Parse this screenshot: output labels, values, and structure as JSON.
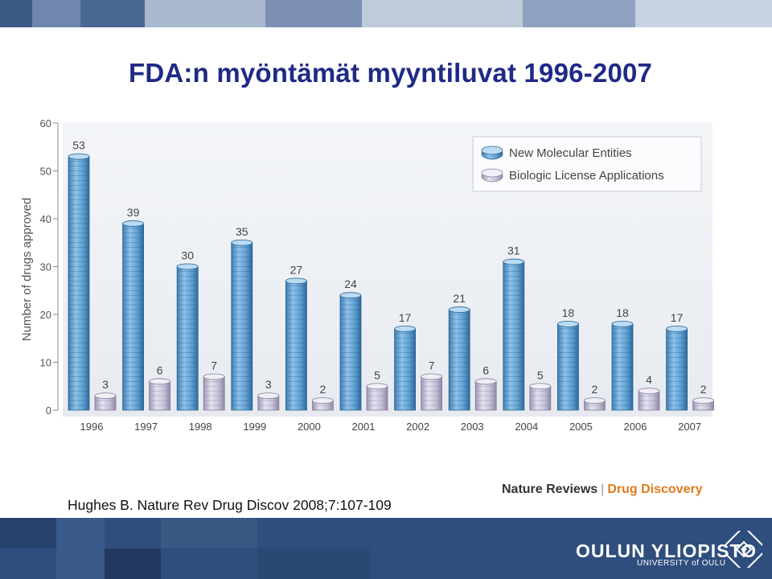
{
  "slide": {
    "title": "FDA:n myöntämät myyntiluvat 1996-2007",
    "citation": "Hughes B. Nature Rev Drug Discov 2008;7:107-109",
    "journal_name": "Nature Reviews",
    "journal_section": "Drug Discovery",
    "university_name": "OULUN YLIOPISTO",
    "university_sub": "UNIVERSITY of OULU"
  },
  "chart_data": {
    "type": "bar",
    "title": "",
    "xlabel": "",
    "ylabel": "Number of drugs approved",
    "ylim": [
      0,
      60
    ],
    "yticks": [
      0,
      10,
      20,
      30,
      40,
      50,
      60
    ],
    "categories": [
      "1996",
      "1997",
      "1998",
      "1999",
      "2000",
      "2001",
      "2002",
      "2003",
      "2004",
      "2005",
      "2006",
      "2007"
    ],
    "series": [
      {
        "name": "New Molecular Entities",
        "values": [
          53,
          39,
          30,
          35,
          27,
          24,
          17,
          21,
          31,
          18,
          18,
          17
        ],
        "color": "#6aa9d8"
      },
      {
        "name": "Biologic License Applications",
        "values": [
          3,
          6,
          7,
          3,
          2,
          5,
          7,
          6,
          5,
          2,
          4,
          2
        ],
        "color": "#c9c3d9"
      }
    ],
    "legend_position": "top-right",
    "grid": false
  }
}
